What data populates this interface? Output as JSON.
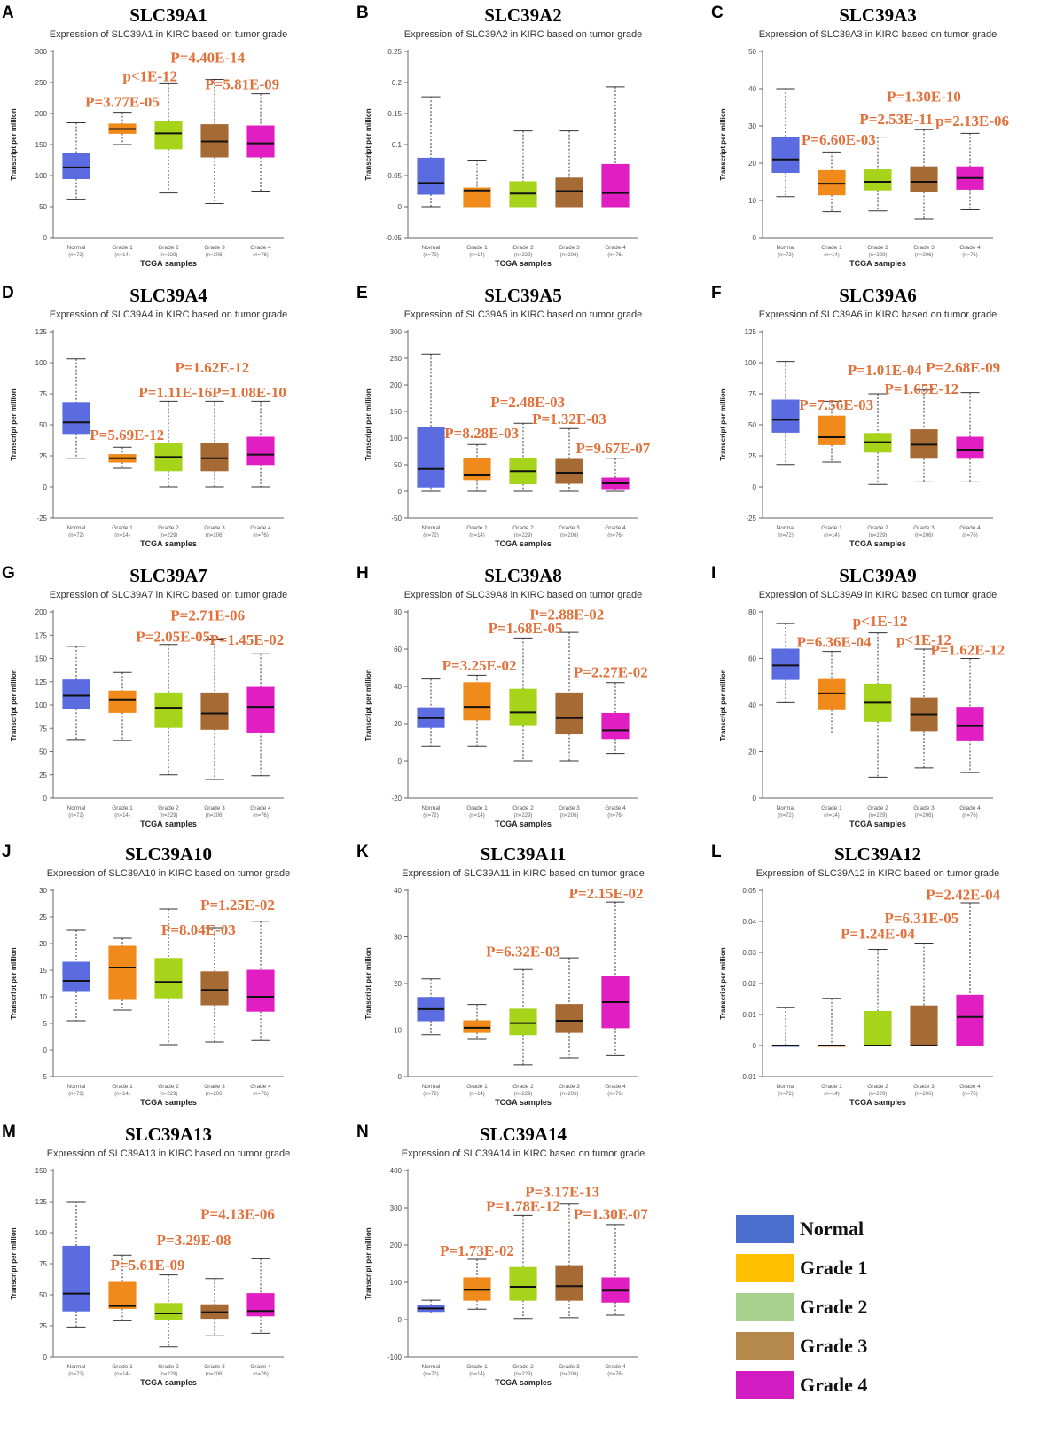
{
  "figure": {
    "categories": [
      {
        "label": "Normal",
        "n": "(n=72)"
      },
      {
        "label": "Grade 1",
        "n": "(n=14)"
      },
      {
        "label": "Grade 2",
        "n": "(n=229)"
      },
      {
        "label": "Grade 3",
        "n": "(n=206)"
      },
      {
        "label": "Grade 4",
        "n": "(n=76)"
      }
    ],
    "xlabel": "TCGA samples",
    "ylabel": "Transcript per million",
    "colors": [
      "#5b6be0",
      "#f08a1a",
      "#a6d41b",
      "#a66a35",
      "#e01ec1"
    ],
    "pvalue_color": "#e2703a",
    "legend": [
      {
        "label": "Normal",
        "color": "#4a6fcf"
      },
      {
        "label": "Grade 1",
        "color": "#ffc000"
      },
      {
        "label": "Grade 2",
        "color": "#a9d18e"
      },
      {
        "label": "Grade 3",
        "color": "#b5894b"
      },
      {
        "label": "Grade 4",
        "color": "#d01cc0"
      }
    ]
  },
  "chart_data": [
    {
      "type": "box",
      "letter": "A",
      "title": "SLC39A1",
      "subtitle": "Expression of SLC39A1 in KIRC based on tumor grade",
      "ylim": [
        0,
        300
      ],
      "ticks": [
        0,
        50,
        100,
        150,
        200,
        250,
        300
      ],
      "boxes": [
        [
          62,
          95,
          113,
          135,
          185
        ],
        [
          150,
          168,
          175,
          183,
          202
        ],
        [
          72,
          143,
          168,
          187,
          248
        ],
        [
          55,
          130,
          155,
          182,
          255
        ],
        [
          75,
          130,
          152,
          180,
          232
        ]
      ],
      "pvalues": [
        {
          "text": "P=3.77E-05",
          "value_y": 211,
          "at": 1
        },
        {
          "text": "p<1E-12",
          "value_y": 252,
          "at": 1.6
        },
        {
          "text": "P=4.40E-14",
          "value_y": 282,
          "at": 2.85
        },
        {
          "text": "P=5.81E-09",
          "value_y": 239,
          "at": 3.6
        }
      ]
    },
    {
      "type": "box",
      "letter": "B",
      "title": "SLC39A2",
      "subtitle": "Expression of SLC39A2 in KIRC based on tumor grade",
      "ylim": [
        -0.05,
        0.25
      ],
      "ticks": [
        -0.05,
        0,
        0.05,
        0.1,
        0.15,
        0.2,
        0.25
      ],
      "boxes": [
        [
          0,
          0.02,
          0.038,
          0.078,
          0.177
        ],
        [
          0,
          0,
          0.026,
          0.03,
          0.075
        ],
        [
          0,
          0,
          0.021,
          0.04,
          0.122
        ],
        [
          0,
          0,
          0.025,
          0.046,
          0.122
        ],
        [
          0,
          0,
          0.022,
          0.068,
          0.193
        ]
      ],
      "pvalues": []
    },
    {
      "type": "box",
      "letter": "C",
      "title": "SLC39A3",
      "subtitle": "Expression of SLC39A3 in KIRC based on tumor grade",
      "ylim": [
        0,
        50
      ],
      "ticks": [
        0,
        10,
        20,
        30,
        40,
        50
      ],
      "boxes": [
        [
          11,
          17.5,
          21,
          27,
          40
        ],
        [
          7,
          11.5,
          14.5,
          18,
          23
        ],
        [
          7.2,
          12.8,
          15,
          18.2,
          27
        ],
        [
          5,
          12.3,
          15,
          19,
          29
        ],
        [
          7.5,
          13,
          16,
          19,
          28
        ]
      ],
      "pvalues": [
        {
          "text": "P=6.60E-03",
          "value_y": 25,
          "at": 1.15
        },
        {
          "text": "P=2.53E-11",
          "value_y": 30.5,
          "at": 2.4
        },
        {
          "text": "P=1.30E-10",
          "value_y": 36.5,
          "at": 3.0
        },
        {
          "text": "p=2.13E-06",
          "value_y": 30,
          "at": 4.05
        }
      ]
    },
    {
      "type": "box",
      "letter": "D",
      "title": "SLC39A4",
      "subtitle": "Expression of SLC39A4 in KIRC based on tumor grade",
      "ylim": [
        -25,
        125
      ],
      "ticks": [
        -25,
        0,
        25,
        50,
        75,
        100,
        125
      ],
      "boxes": [
        [
          23,
          43,
          52,
          68,
          103
        ],
        [
          15,
          20,
          23,
          26,
          32
        ],
        [
          0,
          13,
          24,
          35,
          69
        ],
        [
          0,
          13,
          23,
          35,
          69
        ],
        [
          0,
          18,
          26,
          40,
          69
        ]
      ],
      "pvalues": [
        {
          "text": "P=5.69E-12",
          "value_y": 38,
          "at": 1.1
        },
        {
          "text": "P=1.11E-16",
          "value_y": 72,
          "at": 2.15
        },
        {
          "text": "P=1.62E-12",
          "value_y": 92,
          "at": 2.95
        },
        {
          "text": "P=1.08E-10",
          "value_y": 72,
          "at": 3.75
        }
      ]
    },
    {
      "type": "box",
      "letter": "E",
      "title": "SLC39A5",
      "subtitle": "Expression of SLC39A5 in KIRC based on tumor grade",
      "ylim": [
        -50,
        300
      ],
      "ticks": [
        -50,
        0,
        50,
        100,
        150,
        200,
        250,
        300
      ],
      "boxes": [
        [
          0,
          8,
          42,
          120,
          258
        ],
        [
          0,
          22,
          30,
          62,
          88
        ],
        [
          0,
          14,
          38,
          62,
          128
        ],
        [
          0,
          15,
          35,
          60,
          118
        ],
        [
          0,
          5,
          15,
          25,
          62
        ]
      ],
      "pvalues": [
        {
          "text": "P=8.28E-03",
          "value_y": 100,
          "at": 1.1
        },
        {
          "text": "P=2.48E-03",
          "value_y": 158,
          "at": 2.1
        },
        {
          "text": "P=1.32E-03",
          "value_y": 127,
          "at": 3.0
        },
        {
          "text": "P=9.67E-07",
          "value_y": 72,
          "at": 3.95
        }
      ]
    },
    {
      "type": "box",
      "letter": "F",
      "title": "SLC39A6",
      "subtitle": "Expression of SLC39A6 in KIRC based on tumor grade",
      "ylim": [
        -25,
        125
      ],
      "ticks": [
        -25,
        0,
        25,
        50,
        75,
        100,
        125
      ],
      "boxes": [
        [
          18,
          44,
          54,
          70,
          101
        ],
        [
          20,
          34,
          40,
          57,
          69
        ],
        [
          2,
          28,
          36,
          43,
          75
        ],
        [
          4,
          23,
          34,
          46,
          78
        ],
        [
          4,
          23,
          30,
          40,
          76
        ]
      ],
      "pvalues": [
        {
          "text": "P=7.56E-03",
          "value_y": 62,
          "at": 1.1
        },
        {
          "text": "P=1.01E-04",
          "value_y": 90,
          "at": 2.15
        },
        {
          "text": "P=1.65E-12",
          "value_y": 75,
          "at": 2.95
        },
        {
          "text": "P=2.68E-09",
          "value_y": 92,
          "at": 3.85
        }
      ]
    },
    {
      "type": "box",
      "letter": "G",
      "title": "SLC39A7",
      "subtitle": "Expression of SLC39A7 in KIRC based on tumor grade",
      "ylim": [
        0,
        200
      ],
      "ticks": [
        0,
        25,
        50,
        75,
        100,
        125,
        150,
        175,
        200
      ],
      "boxes": [
        [
          63,
          96,
          110,
          127,
          163
        ],
        [
          62,
          92,
          106,
          115,
          135
        ],
        [
          25,
          76,
          97,
          113,
          165
        ],
        [
          20,
          74,
          91,
          113,
          170
        ],
        [
          24,
          71,
          98,
          119,
          155
        ]
      ],
      "pvalues": [
        {
          "text": "P=2.05E-05",
          "value_y": 168,
          "at": 2.1
        },
        {
          "text": "P=2.71E-06",
          "value_y": 191,
          "at": 2.85
        },
        {
          "text": "P=1.45E-02",
          "value_y": 165,
          "at": 3.7
        }
      ]
    },
    {
      "type": "box",
      "letter": "H",
      "title": "SLC39A8",
      "subtitle": "Expression of SLC39A8 in KIRC based on tumor grade",
      "ylim": [
        -20,
        80
      ],
      "ticks": [
        -20,
        0,
        20,
        40,
        60,
        80
      ],
      "boxes": [
        [
          8,
          18,
          23,
          28.5,
          44
        ],
        [
          8,
          22,
          29,
          42,
          46
        ],
        [
          0,
          19,
          26,
          38.5,
          66
        ],
        [
          0,
          14.5,
          23,
          36.5,
          69
        ],
        [
          4,
          12,
          16.5,
          25.5,
          42
        ]
      ],
      "pvalues": [
        {
          "text": "P=3.25E-02",
          "value_y": 48.5,
          "at": 1.05
        },
        {
          "text": "P=1.68E-05",
          "value_y": 68.5,
          "at": 2.05
        },
        {
          "text": "P=2.88E-02",
          "value_y": 76,
          "at": 2.95
        },
        {
          "text": "P=2.27E-02",
          "value_y": 45,
          "at": 3.9
        }
      ]
    },
    {
      "type": "box",
      "letter": "I",
      "title": "SLC39A9",
      "subtitle": "Expression of SLC39A9 in KIRC based on tumor grade",
      "ylim": [
        0,
        80
      ],
      "ticks": [
        0,
        20,
        40,
        60,
        80
      ],
      "boxes": [
        [
          41,
          51,
          57,
          64,
          75
        ],
        [
          28,
          38,
          45,
          51,
          63
        ],
        [
          9,
          33,
          41,
          49,
          71
        ],
        [
          13,
          29,
          36,
          43,
          64
        ],
        [
          11,
          25,
          31,
          39,
          60
        ]
      ],
      "pvalues": [
        {
          "text": "P=6.36E-04",
          "value_y": 65,
          "at": 1.05
        },
        {
          "text": "p<1E-12",
          "value_y": 74,
          "at": 2.05
        },
        {
          "text": "p<1E-12",
          "value_y": 66,
          "at": 3.0
        },
        {
          "text": "P=1.62E-12",
          "value_y": 61.5,
          "at": 3.95
        }
      ]
    },
    {
      "type": "box",
      "letter": "J",
      "title": "SLC39A10",
      "subtitle": "Expression of SLC39A10 in KIRC based on tumor grade",
      "ylim": [
        -5,
        30
      ],
      "ticks": [
        -5,
        0,
        5,
        10,
        15,
        20,
        25,
        30
      ],
      "boxes": [
        [
          5.5,
          11,
          13,
          16.5,
          22.5
        ],
        [
          7.5,
          9.5,
          15.5,
          19.5,
          21
        ],
        [
          1,
          9.8,
          12.8,
          17.2,
          26.5
        ],
        [
          1.5,
          8.5,
          11.3,
          14.7,
          23
        ],
        [
          1.8,
          7.3,
          10,
          15,
          24.2
        ]
      ],
      "pvalues": [
        {
          "text": "P=8.04E-03",
          "value_y": 21.7,
          "at": 2.65
        },
        {
          "text": "P=1.25E-02",
          "value_y": 26.3,
          "at": 3.5
        }
      ]
    },
    {
      "type": "box",
      "letter": "K",
      "title": "SLC39A11",
      "subtitle": "Expression of SLC39A11 in KIRC based on tumor grade",
      "ylim": [
        0,
        40
      ],
      "ticks": [
        0,
        10,
        20,
        30,
        40
      ],
      "boxes": [
        [
          9,
          12,
          14.5,
          17,
          21
        ],
        [
          8,
          9.5,
          10.5,
          12,
          15.5
        ],
        [
          2.5,
          9,
          11.5,
          14.5,
          23
        ],
        [
          4,
          9.5,
          12,
          15.5,
          25.5
        ],
        [
          4.5,
          10.5,
          16,
          21.5,
          37.5
        ]
      ],
      "pvalues": [
        {
          "text": "P=6.32E-03",
          "value_y": 25.8,
          "at": 2.0
        },
        {
          "text": "P=2.15E-02",
          "value_y": 38.3,
          "at": 3.8
        }
      ]
    },
    {
      "type": "box",
      "letter": "L",
      "title": "SLC39A12",
      "subtitle": "Expression of SLC39A12 in KIRC based on tumor grade",
      "ylim": [
        -0.01,
        0.05
      ],
      "ticks": [
        -0.01,
        0,
        0.01,
        0.02,
        0.03,
        0.04,
        0.05
      ],
      "boxes": [
        [
          0,
          0,
          0,
          0,
          0.0122
        ],
        [
          0,
          0,
          0,
          0,
          0.0152
        ],
        [
          0,
          0,
          0,
          0.011,
          0.031
        ],
        [
          0,
          0,
          0,
          0.0128,
          0.033
        ],
        [
          0,
          0,
          0.0092,
          0.0162,
          0.046
        ]
      ],
      "pvalues": [
        {
          "text": "P=1.24E-04",
          "value_y": 0.0345,
          "at": 2.0
        },
        {
          "text": "P=6.31E-05",
          "value_y": 0.0395,
          "at": 2.95
        },
        {
          "text": "P=2.42E-04",
          "value_y": 0.047,
          "at": 3.85
        }
      ]
    },
    {
      "type": "box",
      "letter": "M",
      "title": "SLC39A13",
      "subtitle": "Expression of SLC39A13 in KIRC based on tumor grade",
      "ylim": [
        0,
        150
      ],
      "ticks": [
        0,
        25,
        50,
        75,
        100,
        125,
        150
      ],
      "boxes": [
        [
          24,
          37,
          51,
          89,
          125
        ],
        [
          29,
          39,
          41,
          60,
          82
        ],
        [
          8,
          30,
          35,
          43,
          66
        ],
        [
          17,
          31,
          36,
          42,
          63
        ],
        [
          19,
          33,
          37,
          51,
          79
        ]
      ],
      "pvalues": [
        {
          "text": "P=5.61E-09",
          "value_y": 70,
          "at": 1.55
        },
        {
          "text": "P=3.29E-08",
          "value_y": 90,
          "at": 2.55
        },
        {
          "text": "P=4.13E-06",
          "value_y": 111,
          "at": 3.5
        }
      ]
    },
    {
      "type": "box",
      "letter": "N",
      "title": "SLC39A14",
      "subtitle": "Expression of SLC39A14 in KIRC based on tumor grade",
      "ylim": [
        -100,
        400
      ],
      "ticks": [
        -100,
        0,
        100,
        200,
        300,
        400
      ],
      "boxes": [
        [
          18,
          22,
          30,
          38,
          52
        ],
        [
          28,
          52,
          80,
          112,
          162
        ],
        [
          3,
          52,
          88,
          140,
          280
        ],
        [
          5,
          52,
          90,
          145,
          310
        ],
        [
          12,
          47,
          78,
          112,
          255
        ]
      ],
      "pvalues": [
        {
          "text": "P=1.73E-02",
          "value_y": 172,
          "at": 1.0
        },
        {
          "text": "P=1.78E-12",
          "value_y": 292,
          "at": 2.0
        },
        {
          "text": "P=3.17E-13",
          "value_y": 330,
          "at": 2.85
        },
        {
          "text": "P=1.30E-07",
          "value_y": 270,
          "at": 3.9
        }
      ]
    }
  ]
}
